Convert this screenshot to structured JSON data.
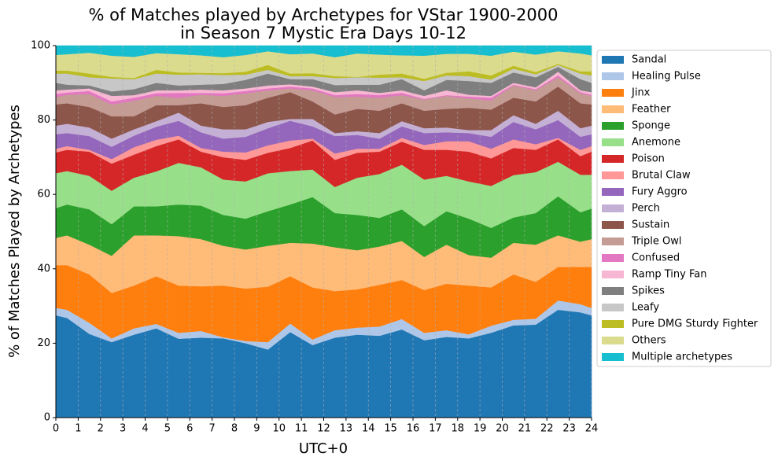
{
  "chart_data": {
    "type": "stacked_area",
    "title": [
      "% of Matches played by Archetypes for VStar 1900-2000",
      "in Season 7 Mystic Era Days 10-12"
    ],
    "xlabel": "UTC+0",
    "ylabel": "% of Matches Played by Archetypes",
    "x": [
      0,
      0.5,
      1.5,
      2.5,
      3.5,
      4.5,
      5.5,
      6.5,
      7.5,
      8.5,
      9.5,
      10.5,
      11.5,
      12.5,
      13.5,
      14.5,
      15.5,
      16.5,
      17.5,
      18.5,
      19.5,
      20.5,
      21.5,
      22.5,
      23.5,
      24
    ],
    "xlim": [
      0,
      24
    ],
    "xticks": [
      0,
      1,
      2,
      3,
      4,
      5,
      6,
      7,
      8,
      9,
      10,
      11,
      12,
      13,
      14,
      15,
      16,
      17,
      18,
      19,
      20,
      21,
      22,
      23,
      24
    ],
    "ylim": [
      0,
      100
    ],
    "yticks": [
      0,
      20,
      40,
      60,
      80,
      100
    ],
    "grid": "x",
    "legend": "outside right",
    "series": [
      {
        "name": "Sandal",
        "color": "#1f77b4",
        "values": [
          27.5,
          26.8,
          22.5,
          20.3,
          22.3,
          24,
          21.2,
          21.5,
          21.3,
          20,
          18.3,
          23,
          19.5,
          21.5,
          22.3,
          22,
          23.7,
          20.8,
          21.7,
          21.3,
          22.8,
          24.8,
          25,
          29,
          28.3,
          27.5
        ]
      },
      {
        "name": "Healing Pulse",
        "color": "#aec7e8",
        "values": [
          2,
          2.2,
          3,
          1,
          1.7,
          1.2,
          1.6,
          1.8,
          0.3,
          0.6,
          2,
          2.3,
          1.5,
          2,
          1.9,
          2.5,
          2.8,
          2,
          1.8,
          1.1,
          1.9,
          1.5,
          1.6,
          2.5,
          2.2,
          2
        ]
      },
      {
        "name": "Jinx",
        "color": "#ff7f0e",
        "values": [
          11.5,
          12,
          13,
          12.2,
          11.5,
          12.8,
          12.7,
          12,
          13.9,
          14.1,
          14.9,
          12.7,
          14,
          10.5,
          10.3,
          11.2,
          10.5,
          11.5,
          12.5,
          13.1,
          10.3,
          12.2,
          9.9,
          9,
          10,
          11
        ]
      },
      {
        "name": "Feather",
        "color": "#ffbb78",
        "values": [
          7.3,
          8,
          8,
          10,
          13.5,
          11,
          13.3,
          12.7,
          10.7,
          10.5,
          11,
          9,
          11.8,
          11.8,
          10.5,
          10.3,
          10.5,
          8.9,
          10.5,
          8.2,
          8,
          8.5,
          10,
          8.5,
          6.8,
          7.5
        ]
      },
      {
        "name": "Sponge",
        "color": "#2ca02c",
        "values": [
          8,
          8.3,
          9.5,
          8.5,
          7.8,
          7.8,
          8.5,
          9,
          8.3,
          8.3,
          9.3,
          10.3,
          12.5,
          9.2,
          9.5,
          7.7,
          8.5,
          8.3,
          9,
          9.8,
          8,
          6.8,
          8.5,
          10.5,
          7.9,
          8.2
        ]
      },
      {
        "name": "Anemone",
        "color": "#98df8a",
        "values": [
          9.4,
          9,
          9,
          9,
          7.7,
          9.4,
          11.2,
          10.3,
          9.5,
          10,
          10.2,
          9,
          7.4,
          7,
          10,
          11.8,
          12,
          12.5,
          9.5,
          10,
          11.3,
          11.4,
          11,
          9.3,
          10.1,
          9.1
        ]
      },
      {
        "name": "Poison",
        "color": "#d62728",
        "values": [
          5.6,
          5.7,
          6.5,
          7.3,
          6.2,
          6.8,
          6.3,
          4.2,
          6,
          5.8,
          5.5,
          6.2,
          7.8,
          7.3,
          6.7,
          6,
          6.2,
          8,
          7,
          8,
          7.4,
          7.3,
          6,
          6,
          5,
          6.2
        ]
      },
      {
        "name": "Brutal Claw",
        "color": "#ff9896",
        "values": [
          1,
          1,
          0.5,
          1.2,
          2,
          1.7,
          1,
          1,
          1.5,
          2,
          2,
          2,
          0.5,
          1.7,
          1.1,
          0.8,
          1,
          1.3,
          2.3,
          2.8,
          2.6,
          2.3,
          1.5,
          0.4,
          1.7,
          1.5
        ]
      },
      {
        "name": "Fury Aggro",
        "color": "#9467bd",
        "values": [
          3.9,
          3.5,
          3.7,
          3.3,
          3.1,
          3.5,
          4,
          4.2,
          3.5,
          4.2,
          4.6,
          5.3,
          3.3,
          4.7,
          3.7,
          2.7,
          3.1,
          3.2,
          2.4,
          2.2,
          3.2,
          4.7,
          4,
          4.8,
          3.5,
          3.2
        ]
      },
      {
        "name": "Perch",
        "color": "#c5b0d5",
        "values": [
          2.3,
          2.5,
          2.3,
          2.2,
          1.7,
          1.5,
          2.2,
          1.8,
          2.5,
          2,
          1.7,
          0.5,
          2,
          0.8,
          1,
          1.5,
          1.4,
          1.3,
          1.3,
          0.8,
          1.8,
          1.8,
          1.5,
          2.5,
          2.3,
          2.3
        ]
      },
      {
        "name": "Sustain",
        "color": "#8c564b",
        "values": [
          5.7,
          5.5,
          5.5,
          6,
          3.5,
          4.3,
          2,
          6,
          6,
          6.5,
          6.5,
          7.2,
          4.7,
          5,
          6,
          6,
          4.8,
          4.7,
          5,
          6,
          5.5,
          4.7,
          6,
          6.5,
          6.7,
          5.7
        ]
      },
      {
        "name": "Triple Owl",
        "color": "#c49c94",
        "values": [
          2,
          2.3,
          3.5,
          3.2,
          4.2,
          2.5,
          2,
          2.3,
          3,
          3.2,
          2,
          1,
          3,
          4.7,
          3.3,
          3.5,
          2.2,
          3,
          3.5,
          2.5,
          2.5,
          3.3,
          3,
          2.5,
          2.7,
          2.3
        ]
      },
      {
        "name": "Confused",
        "color": "#e377c2",
        "values": [
          0.8,
          0.6,
          0.8,
          0.8,
          0.8,
          0.7,
          1.3,
          0.5,
          0.7,
          0.6,
          0.5,
          0.5,
          0.5,
          0.5,
          0.7,
          0.7,
          0.6,
          0.2,
          0.2,
          0.5,
          0.7,
          0.2,
          0.3,
          0.5,
          0.3,
          0.3
        ]
      },
      {
        "name": "Ramp Tiny Fan",
        "color": "#f7b6d2",
        "values": [
          1,
          0.8,
          0.7,
          1.5,
          0.7,
          0.8,
          0.7,
          0.9,
          0.8,
          0.7,
          0.8,
          0.6,
          0.5,
          0.8,
          1,
          0.6,
          0.7,
          0.8,
          1.3,
          0.5,
          0.5,
          0.5,
          0.5,
          1,
          0.5,
          0.7
        ]
      },
      {
        "name": "Spikes",
        "color": "#7f7f7f",
        "values": [
          2,
          1.3,
          0.8,
          1.2,
          1.6,
          2,
          1.3,
          1.3,
          1.7,
          2.3,
          3.2,
          1.4,
          2,
          1.9,
          1.5,
          2.2,
          3,
          1.5,
          2.8,
          3.7,
          3.5,
          2.8,
          2.7,
          1.3,
          3,
          2.5
        ]
      },
      {
        "name": "Leafy",
        "color": "#c7c7c7",
        "values": [
          2.5,
          3,
          2.2,
          3.5,
          2.7,
          2.5,
          2.9,
          2.8,
          2.4,
          1.4,
          1,
          0.8,
          0.8,
          1.9,
          2,
          1.9,
          0.5,
          2.5,
          1.2,
          1.3,
          0.9,
          1,
          0.8,
          0.5,
          1.5,
          2
        ]
      },
      {
        "name": "Pure DMG Sturdy Fighter",
        "color": "#bcbd22",
        "values": [
          0.8,
          0.8,
          1,
          0.4,
          0.3,
          1,
          0.6,
          0.4,
          0.5,
          0.8,
          1.3,
          0.7,
          0.8,
          0.5,
          0.1,
          0.8,
          1,
          0.6,
          0.7,
          1.3,
          1.1,
          0.8,
          0.6,
          0.3,
          0.6,
          1.1
        ]
      },
      {
        "name": "Others",
        "color": "#dbdb8d",
        "values": [
          4.2,
          4.4,
          5.6,
          5.7,
          5.7,
          4.5,
          4.9,
          4.7,
          4.3,
          4.5,
          3.7,
          5.2,
          5.3,
          5.1,
          6.3,
          5.4,
          4.9,
          6.2,
          5.1,
          4.7,
          5.3,
          3.8,
          4.7,
          3.4,
          4.8,
          4.3
        ]
      },
      {
        "name": "Multiple archetypes",
        "color": "#17becf",
        "values": [
          2.5,
          2.3,
          1.9,
          2.7,
          3,
          2,
          2.3,
          2.6,
          3.1,
          2.5,
          1.5,
          2.3,
          2.1,
          3.1,
          2.1,
          2.4,
          2.6,
          2.7,
          2.2,
          2.2,
          2.7,
          1.6,
          2.4,
          1.5,
          2.1,
          2.6
        ]
      }
    ]
  }
}
